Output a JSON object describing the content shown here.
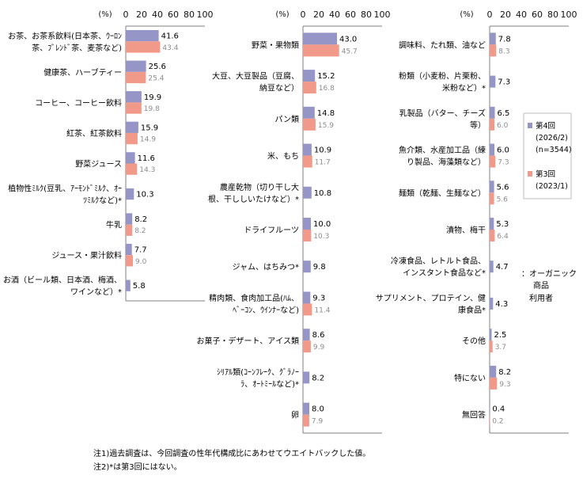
{
  "unit_label": "(%)",
  "axis_ticks": [
    "0",
    "20",
    "40",
    "60",
    "80",
    "100"
  ],
  "legend": {
    "current": [
      "第4回",
      "(2026/2)",
      "(n=3544)"
    ],
    "previous": [
      "第3回",
      "(2023/1)"
    ],
    "organic_users": [
      "：オーガニック",
      "商品",
      "利用者"
    ]
  },
  "colors": {
    "current": "#9596c7",
    "previous": "#f29a89",
    "axis": "#7f7f7f",
    "prev_value_text": "#8c8c8c"
  },
  "notes": [
    "注1)過去調査は、今回調査の性年代構成比にあわせてウエイトバックした値。",
    "注2)*は第3回にはない。"
  ],
  "chart_data": [
    {
      "type": "bar",
      "orientation": "horizontal",
      "xlim": [
        0,
        100
      ],
      "categories": [
        [
          "お茶、お茶系飲料(日本茶、ｳｰﾛﾝ",
          "茶、ﾌﾞﾚﾝﾄﾞ茶、麦茶など)"
        ],
        [
          "健康茶、ハーブティー"
        ],
        [
          "コーヒー、コーヒー飲料"
        ],
        [
          "紅茶、紅茶飲料"
        ],
        [
          "野菜ジュース"
        ],
        [
          "植物性ﾐﾙｸ(豆乳、ｱｰﾓﾝﾄﾞﾐﾙｸ、ｵｰ",
          "ﾂﾐﾙｸなど)*"
        ],
        [
          "牛乳"
        ],
        [
          "ジュース・果汁飲料"
        ],
        [
          "お酒（ビール類、日本酒、梅酒、",
          "ワインなど）*"
        ]
      ],
      "series": [
        {
          "name": "第4回 (2026/2) (n=3544)",
          "values": [
            41.6,
            25.6,
            19.9,
            15.9,
            11.6,
            10.3,
            8.2,
            7.7,
            5.8
          ]
        },
        {
          "name": "第3回 (2023/1)",
          "values": [
            43.4,
            25.4,
            19.8,
            14.9,
            14.3,
            null,
            8.2,
            9.0,
            null
          ]
        }
      ]
    },
    {
      "type": "bar",
      "orientation": "horizontal",
      "xlim": [
        0,
        100
      ],
      "categories": [
        [
          "野菜・果物類"
        ],
        [
          "大豆、大豆製品（豆腐、",
          "納豆など）"
        ],
        [
          "パン類"
        ],
        [
          "米、もち"
        ],
        [
          "農産乾物（切り干し大",
          "根、干ししいたけなど）*"
        ],
        [
          "ドライフルーツ"
        ],
        [
          "ジャム、はちみつ*"
        ],
        [
          "精肉類、食肉加工品(ﾊﾑ、",
          "ﾍﾞｰｺﾝ、ｳｲﾝﾅｰなど)"
        ],
        [
          "お菓子・デザート、アイス類"
        ],
        [
          "ｼﾘｱﾙ類(ｺｰﾝﾌﾚｰｸ、ｸﾞﾗﾉｰ",
          "ﾗ、ｵｰﾄﾐｰﾙなど)*"
        ],
        [
          "卵"
        ]
      ],
      "series": [
        {
          "name": "第4回 (2026/2) (n=3544)",
          "values": [
            43.0,
            15.2,
            14.8,
            10.9,
            10.8,
            10.0,
            9.8,
            9.3,
            8.6,
            8.2,
            8.0
          ]
        },
        {
          "name": "第3回 (2023/1)",
          "values": [
            45.7,
            16.8,
            15.9,
            11.7,
            null,
            10.3,
            null,
            11.4,
            9.9,
            null,
            7.9
          ]
        }
      ]
    },
    {
      "type": "bar",
      "orientation": "horizontal",
      "xlim": [
        0,
        100
      ],
      "categories": [
        [
          "調味料、たれ類、油など"
        ],
        [
          "粉類（小麦粉、片栗粉、",
          "米粉など）*"
        ],
        [
          "乳製品（バター、チーズ",
          "等）"
        ],
        [
          "魚介類、水産加工品（練",
          "り製品、海藻類など）"
        ],
        [
          "麺類（乾麺、生麺など）"
        ],
        [
          "漬物、梅干"
        ],
        [
          "冷凍食品、レトルト食品、",
          "インスタント食品など*"
        ],
        [
          "サプリメント、プロテイン、健",
          "康食品*"
        ],
        [
          "その他"
        ],
        [
          "特にない"
        ],
        [
          "無回答"
        ]
      ],
      "series": [
        {
          "name": "第4回 (2026/2) (n=3544)",
          "values": [
            7.8,
            7.3,
            6.5,
            6.0,
            5.6,
            5.3,
            4.7,
            4.3,
            2.5,
            8.2,
            0.4
          ]
        },
        {
          "name": "第3回 (2023/1)",
          "values": [
            8.3,
            null,
            6.0,
            7.3,
            5.6,
            6.4,
            null,
            null,
            3.7,
            9.3,
            0.2
          ]
        }
      ]
    }
  ]
}
